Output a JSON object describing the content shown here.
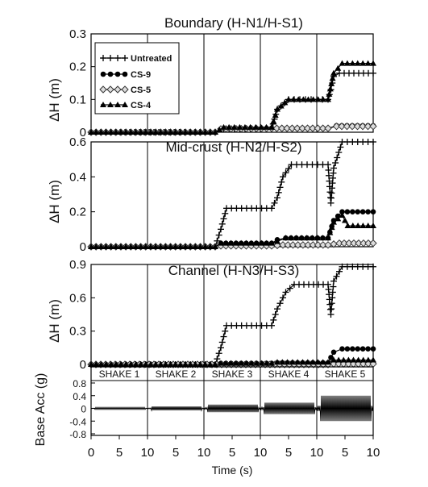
{
  "chart_data": [
    {
      "type": "line",
      "title": "Boundary (H-N1/H-S1)",
      "ylabel": "ΔH (m)",
      "ylim": [
        0,
        0.3
      ],
      "yticks": [
        "0",
        "0.1",
        "0.2",
        "0.3"
      ],
      "shake_dividers": [
        1,
        2,
        3,
        4
      ],
      "legend": {
        "placement": "top-left",
        "entries": [
          {
            "label": "Untreated",
            "marker": "plus"
          },
          {
            "label": "CS-9",
            "marker": "circle"
          },
          {
            "label": "CS-5",
            "marker": "diamond"
          },
          {
            "label": "CS-4",
            "marker": "triangle"
          }
        ]
      },
      "series": [
        {
          "name": "Untreated",
          "marker": "plus",
          "x": [
            0,
            1.2,
            2.2,
            2.35,
            3.2,
            3.3,
            3.5,
            3.8,
            4.2,
            4.25,
            4.3,
            4.4,
            5.0
          ],
          "y": [
            0,
            0,
            0,
            0.01,
            0.01,
            0.07,
            0.1,
            0.1,
            0.1,
            0.13,
            0.17,
            0.18,
            0.18
          ]
        },
        {
          "name": "CS-9",
          "marker": "circle",
          "x": [
            0,
            2.2,
            2.3,
            3.2,
            4.2,
            4.35,
            5.0
          ],
          "y": [
            0,
            0,
            0.01,
            0.012,
            0.012,
            0.02,
            0.02
          ]
        },
        {
          "name": "CS-5",
          "marker": "diamond",
          "x": [
            0,
            2.2,
            2.3,
            3.2,
            4.2,
            4.35,
            5.0
          ],
          "y": [
            0,
            0,
            0.01,
            0.012,
            0.012,
            0.018,
            0.018
          ]
        },
        {
          "name": "CS-4",
          "marker": "triangle",
          "x": [
            0,
            2.2,
            2.35,
            3.2,
            3.3,
            3.5,
            4.2,
            4.3,
            4.45,
            5.0
          ],
          "y": [
            0,
            0,
            0.015,
            0.015,
            0.07,
            0.1,
            0.1,
            0.18,
            0.21,
            0.21
          ]
        }
      ]
    },
    {
      "type": "line",
      "title": "Mid-crust (H-N2/H-S2)",
      "ylabel": "ΔH (m)",
      "ylim": [
        0,
        0.6
      ],
      "yticks": [
        "0",
        "0.2",
        "0.4",
        "0.6"
      ],
      "shake_dividers": [
        1,
        2,
        3,
        4
      ],
      "series": [
        {
          "name": "Untreated",
          "marker": "plus",
          "x": [
            0,
            2.2,
            2.3,
            2.4,
            3.2,
            3.3,
            3.4,
            3.55,
            4.2,
            4.25,
            4.3,
            4.45,
            5.0
          ],
          "y": [
            0,
            0,
            0.1,
            0.22,
            0.22,
            0.28,
            0.4,
            0.47,
            0.47,
            0.25,
            0.45,
            0.6,
            0.6
          ]
        },
        {
          "name": "CS-9",
          "marker": "circle",
          "x": [
            0,
            2.2,
            2.3,
            3.2,
            3.3,
            3.45,
            4.2,
            4.3,
            4.45,
            5.0
          ],
          "y": [
            0,
            0,
            0.02,
            0.02,
            0.04,
            0.05,
            0.05,
            0.15,
            0.2,
            0.2
          ]
        },
        {
          "name": "CS-5",
          "marker": "diamond",
          "x": [
            0,
            2.2,
            2.3,
            3.2,
            3.4,
            4.2,
            4.4,
            5.0
          ],
          "y": [
            0,
            0,
            0.005,
            0.005,
            0.01,
            0.01,
            0.02,
            0.02
          ]
        },
        {
          "name": "CS-4",
          "marker": "triangle",
          "x": [
            0,
            2.2,
            2.3,
            3.2,
            3.3,
            3.45,
            4.2,
            4.3,
            4.45,
            4.55,
            5.0
          ],
          "y": [
            0,
            0,
            0.02,
            0.02,
            0.03,
            0.05,
            0.05,
            0.14,
            0.18,
            0.12,
            0.12
          ]
        }
      ]
    },
    {
      "type": "line",
      "title": "Channel (H-N3/H-S3)",
      "ylabel": "ΔH (m)",
      "ylim": [
        0,
        0.9
      ],
      "yticks": [
        "0",
        "0.3",
        "0.6",
        "0.9"
      ],
      "shake_dividers": [
        1,
        2,
        3,
        4
      ],
      "series": [
        {
          "name": "Untreated",
          "marker": "plus",
          "x": [
            0,
            2.2,
            2.3,
            2.4,
            3.2,
            3.3,
            3.45,
            3.6,
            4.2,
            4.25,
            4.3,
            4.45,
            5.0
          ],
          "y": [
            0,
            0,
            0.15,
            0.35,
            0.35,
            0.5,
            0.65,
            0.72,
            0.72,
            0.45,
            0.75,
            0.88,
            0.88
          ]
        },
        {
          "name": "CS-9",
          "marker": "circle",
          "x": [
            0,
            2.2,
            2.3,
            3.2,
            3.3,
            4.2,
            4.3,
            4.45,
            5.0
          ],
          "y": [
            0,
            0,
            0.01,
            0.01,
            0.015,
            0.015,
            0.11,
            0.14,
            0.14
          ]
        },
        {
          "name": "CS-5",
          "marker": "diamond",
          "x": [
            0,
            4.2,
            4.3,
            5.0
          ],
          "y": [
            0,
            0,
            0.005,
            0.005
          ]
        },
        {
          "name": "CS-4",
          "marker": "triangle",
          "x": [
            0,
            2.2,
            2.3,
            3.2,
            3.3,
            4.2,
            4.3,
            5.0
          ],
          "y": [
            0,
            0,
            0.01,
            0.01,
            0.02,
            0.02,
            0.04,
            0.04
          ]
        }
      ]
    },
    {
      "type": "line",
      "title": "",
      "ylabel": "Base Acc (g)",
      "ylim": [
        -0.8,
        0.8
      ],
      "yticks": [
        "-0.8",
        "-0.4",
        "0",
        "0.4",
        "0.8"
      ],
      "shakes": [
        "SHAKE 1",
        "SHAKE 2",
        "SHAKE 3",
        "SHAKE 4",
        "SHAKE 5"
      ],
      "shake_amplitudes_g": [
        0.03,
        0.06,
        0.12,
        0.18,
        0.4
      ],
      "xlabel": "Time (s)",
      "xticks": [
        "0",
        "5",
        "10",
        "5",
        "10",
        "5",
        "10",
        "5",
        "10",
        "5",
        "10"
      ]
    }
  ]
}
